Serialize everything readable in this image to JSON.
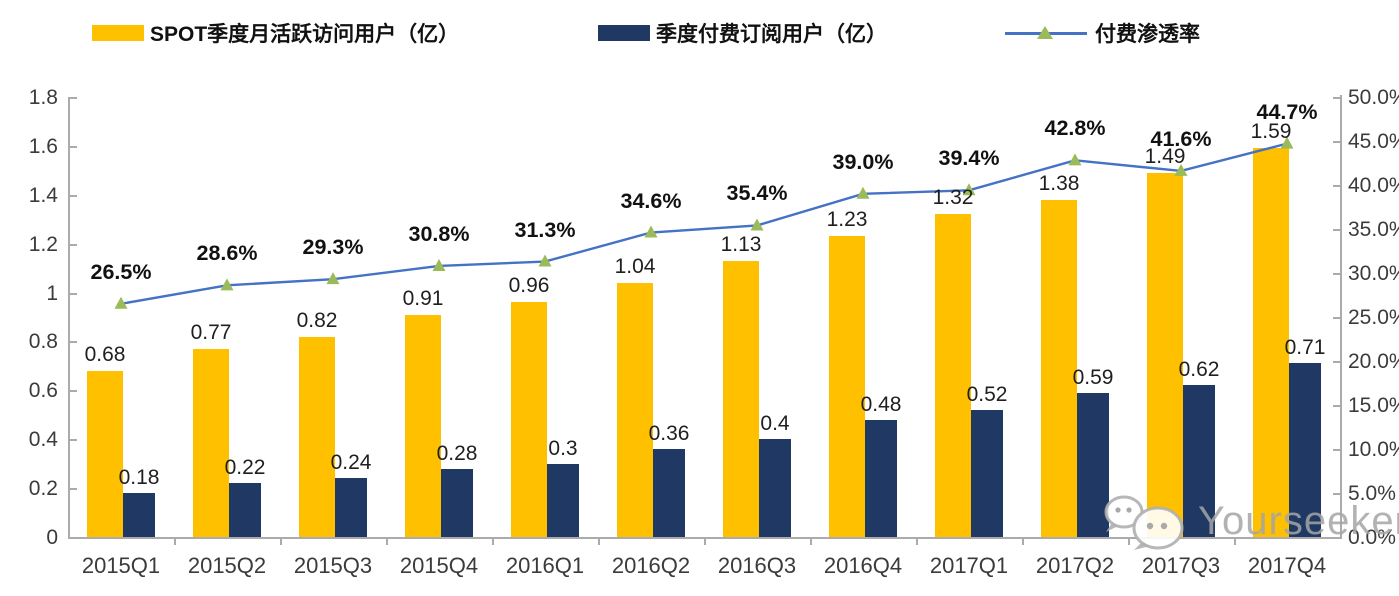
{
  "page": {
    "background": "#ffffff"
  },
  "legend": {
    "mau": {
      "label": "SPOT季度月活跃访问用户（亿）",
      "color": "#FFC000"
    },
    "subs": {
      "label": "季度付费订阅用户（亿）",
      "color": "#1F3864"
    },
    "penetration": {
      "label": "付费渗透率",
      "line_color": "#4472C4",
      "marker_color": "#9BBB59"
    }
  },
  "chart_data": {
    "type": "combo",
    "categories": [
      "2015Q1",
      "2015Q2",
      "2015Q3",
      "2015Q4",
      "2016Q1",
      "2016Q2",
      "2016Q3",
      "2016Q4",
      "2017Q1",
      "2017Q2",
      "2017Q3",
      "2017Q4"
    ],
    "series": [
      {
        "name": "SPOT季度月活跃访问用户（亿）",
        "type": "bar",
        "axis": "left",
        "color": "#FFC000",
        "values": [
          0.68,
          0.77,
          0.82,
          0.91,
          0.96,
          1.04,
          1.13,
          1.23,
          1.32,
          1.38,
          1.49,
          1.59
        ],
        "labels": [
          "0.68",
          "0.77",
          "0.82",
          "0.91",
          "0.96",
          "1.04",
          "1.13",
          "1.23",
          "1.32",
          "1.38",
          "1.49",
          "1.59"
        ]
      },
      {
        "name": "季度付费订阅用户（亿）",
        "type": "bar",
        "axis": "left",
        "color": "#1F3864",
        "values": [
          0.18,
          0.22,
          0.24,
          0.28,
          0.3,
          0.36,
          0.4,
          0.48,
          0.52,
          0.59,
          0.62,
          0.71
        ],
        "labels": [
          "0.18",
          "0.22",
          "0.24",
          "0.28",
          "0.3",
          "0.36",
          "0.4",
          "0.48",
          "0.52",
          "0.59",
          "0.62",
          "0.71"
        ]
      },
      {
        "name": "付费渗透率",
        "type": "line",
        "axis": "right",
        "color": "#4472C4",
        "marker": "triangle",
        "marker_color": "#9BBB59",
        "values": [
          26.5,
          28.6,
          29.3,
          30.8,
          31.3,
          34.6,
          35.4,
          39.0,
          39.4,
          42.8,
          41.6,
          44.7
        ],
        "labels": [
          "26.5%",
          "28.6%",
          "29.3%",
          "30.8%",
          "31.3%",
          "34.6%",
          "35.4%",
          "39.0%",
          "39.4%",
          "42.8%",
          "41.6%",
          "44.7%"
        ]
      }
    ],
    "axes": {
      "left": {
        "min": 0,
        "max": 1.8,
        "ticks": [
          "0",
          "0.2",
          "0.4",
          "0.6",
          "0.8",
          "1",
          "1.2",
          "1.4",
          "1.6",
          "1.8"
        ]
      },
      "right": {
        "min": 0,
        "max": 50,
        "ticks": [
          "0.0%",
          "5.0%",
          "10.0%",
          "15.0%",
          "20.0%",
          "25.0%",
          "30.0%",
          "35.0%",
          "40.0%",
          "45.0%",
          "50.0%"
        ]
      }
    },
    "grid": false,
    "legend_position": "top"
  },
  "watermark": {
    "text": "Yourseeker",
    "icon": "wechat-bubbles-icon"
  }
}
